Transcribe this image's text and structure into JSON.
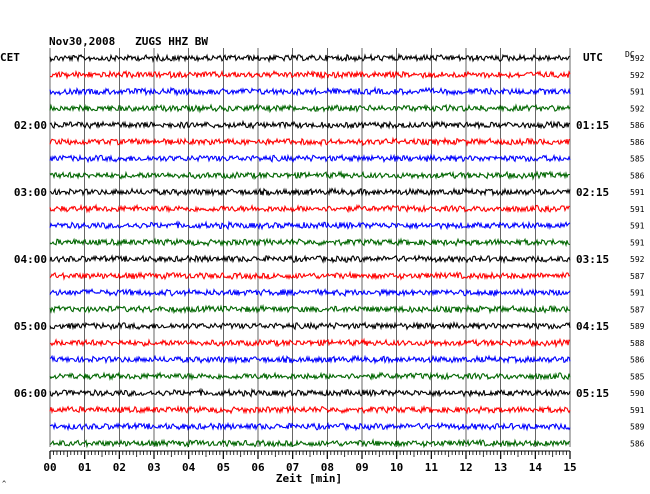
{
  "header": {
    "title": "Nov30,2008   ZUGS HHZ BW",
    "left_zone": "CET",
    "right_zone": "UTC",
    "dc_label": "DC"
  },
  "footer": {
    "xlabel": "Zeit [min]",
    "corner_mark": "^"
  },
  "colors": {
    "trace_cycle": [
      "#000000",
      "#ff0000",
      "#0000ff",
      "#006600"
    ],
    "grid": "#000000",
    "text": "#000000"
  },
  "chart_data": {
    "type": "line",
    "xlim": [
      0,
      15
    ],
    "x_ticks": [
      "00",
      "01",
      "02",
      "03",
      "04",
      "05",
      "06",
      "07",
      "08",
      "09",
      "10",
      "11",
      "12",
      "13",
      "14",
      "15"
    ],
    "traces_per_hour": 4,
    "trace_count": 24,
    "left_hour_labels": [
      {
        "trace_index": 4,
        "label": "02:00"
      },
      {
        "trace_index": 8,
        "label": "03:00"
      },
      {
        "trace_index": 12,
        "label": "04:00"
      },
      {
        "trace_index": 16,
        "label": "05:00"
      },
      {
        "trace_index": 20,
        "label": "06:00"
      }
    ],
    "right_hour_labels": [
      {
        "trace_index": 4,
        "label": "01:15"
      },
      {
        "trace_index": 8,
        "label": "02:15"
      },
      {
        "trace_index": 12,
        "label": "03:15"
      },
      {
        "trace_index": 16,
        "label": "04:15"
      },
      {
        "trace_index": 20,
        "label": "05:15"
      }
    ],
    "dc_values": [
      "592",
      "592",
      "591",
      "592",
      "586",
      "586",
      "585",
      "586",
      "591",
      "591",
      "591",
      "591",
      "592",
      "587",
      "591",
      "587",
      "589",
      "588",
      "586",
      "585",
      "590",
      "591",
      "589",
      "586"
    ],
    "grid": true
  }
}
